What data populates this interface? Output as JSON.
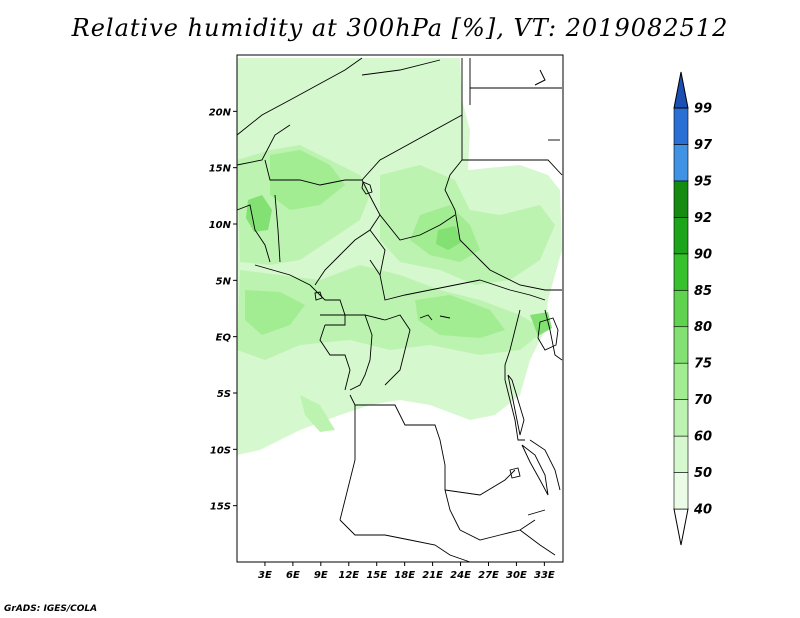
{
  "title": "Relative humidity at 300hPa [%], VT: 2019082512",
  "credit": "GrADS: IGES/COLA",
  "map": {
    "lon_range": [
      0,
      35
    ],
    "lat_range": [
      -20,
      25
    ],
    "lat_ticks": [
      {
        "value": 20,
        "label": "20N"
      },
      {
        "value": 15,
        "label": "15N"
      },
      {
        "value": 10,
        "label": "10N"
      },
      {
        "value": 5,
        "label": "5N"
      },
      {
        "value": 0,
        "label": "EQ"
      },
      {
        "value": -5,
        "label": "5S"
      },
      {
        "value": -10,
        "label": "10S"
      },
      {
        "value": -15,
        "label": "15S"
      }
    ],
    "lon_ticks": [
      {
        "value": 3,
        "label": "3E"
      },
      {
        "value": 6,
        "label": "6E"
      },
      {
        "value": 9,
        "label": "9E"
      },
      {
        "value": 12,
        "label": "12E"
      },
      {
        "value": 15,
        "label": "15E"
      },
      {
        "value": 18,
        "label": "18E"
      },
      {
        "value": 21,
        "label": "21E"
      },
      {
        "value": 24,
        "label": "24E"
      },
      {
        "value": 27,
        "label": "27E"
      },
      {
        "value": 30,
        "label": "30E"
      },
      {
        "value": 33,
        "label": "33E"
      }
    ]
  },
  "colorbar": {
    "levels": [
      "40",
      "50",
      "60",
      "70",
      "75",
      "80",
      "85",
      "90",
      "92",
      "95",
      "97",
      "99"
    ],
    "colors": [
      "#ffffff",
      "#eafce6",
      "#d6f8ce",
      "#bdf3b1",
      "#a2ec92",
      "#82e172",
      "#5fd34f",
      "#37c12c",
      "#1ca51a",
      "#168b12",
      "#3f92e4",
      "#2a6fd6",
      "#1b4fb4"
    ]
  }
}
